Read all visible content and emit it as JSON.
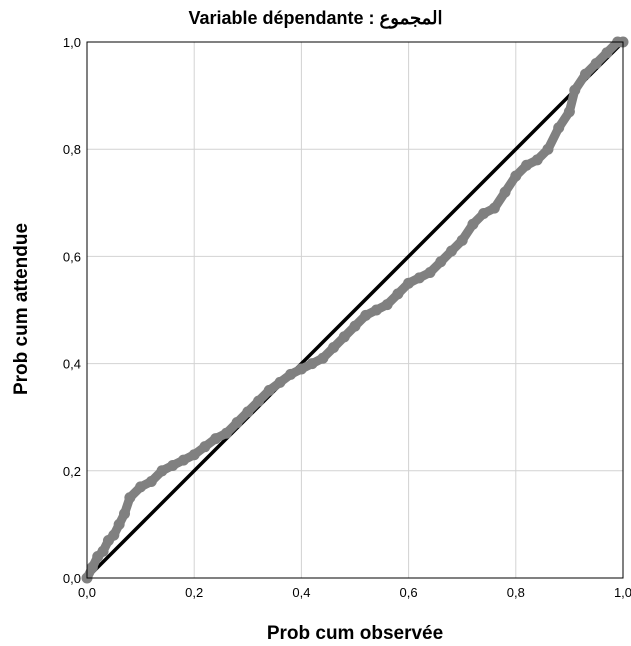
{
  "chart_data": {
    "type": "line",
    "title": "Variable dépendante : المجموع",
    "xlabel": "Prob cum observée",
    "ylabel": "Prob cum attendue",
    "xlim": [
      0,
      1
    ],
    "ylim": [
      0,
      1
    ],
    "x_ticks": [
      "0,0",
      "0,2",
      "0,4",
      "0,6",
      "0,8",
      "1,0"
    ],
    "y_ticks": [
      "0,0",
      "0,2",
      "0,4",
      "0,6",
      "0,8",
      "1,0"
    ],
    "grid": true,
    "legend": "none",
    "series": [
      {
        "kind": "points",
        "color": "#808080",
        "points": [
          [
            0.0,
            0.0
          ],
          [
            0.01,
            0.02
          ],
          [
            0.02,
            0.04
          ],
          [
            0.03,
            0.05
          ],
          [
            0.04,
            0.07
          ],
          [
            0.05,
            0.08
          ],
          [
            0.06,
            0.1
          ],
          [
            0.07,
            0.12
          ],
          [
            0.08,
            0.15
          ],
          [
            0.1,
            0.17
          ],
          [
            0.12,
            0.18
          ],
          [
            0.14,
            0.2
          ],
          [
            0.16,
            0.21
          ],
          [
            0.18,
            0.22
          ],
          [
            0.2,
            0.23
          ],
          [
            0.22,
            0.245
          ],
          [
            0.24,
            0.26
          ],
          [
            0.26,
            0.27
          ],
          [
            0.28,
            0.29
          ],
          [
            0.3,
            0.31
          ],
          [
            0.32,
            0.33
          ],
          [
            0.34,
            0.35
          ],
          [
            0.36,
            0.365
          ],
          [
            0.38,
            0.38
          ],
          [
            0.4,
            0.39
          ],
          [
            0.42,
            0.4
          ],
          [
            0.44,
            0.41
          ],
          [
            0.46,
            0.43
          ],
          [
            0.48,
            0.45
          ],
          [
            0.5,
            0.47
          ],
          [
            0.52,
            0.49
          ],
          [
            0.54,
            0.5
          ],
          [
            0.56,
            0.51
          ],
          [
            0.58,
            0.53
          ],
          [
            0.6,
            0.55
          ],
          [
            0.62,
            0.56
          ],
          [
            0.64,
            0.57
          ],
          [
            0.66,
            0.59
          ],
          [
            0.68,
            0.61
          ],
          [
            0.7,
            0.63
          ],
          [
            0.72,
            0.66
          ],
          [
            0.74,
            0.68
          ],
          [
            0.76,
            0.69
          ],
          [
            0.78,
            0.72
          ],
          [
            0.8,
            0.75
          ],
          [
            0.82,
            0.77
          ],
          [
            0.84,
            0.78
          ],
          [
            0.86,
            0.8
          ],
          [
            0.88,
            0.84
          ],
          [
            0.9,
            0.87
          ],
          [
            0.91,
            0.91
          ],
          [
            0.93,
            0.94
          ],
          [
            0.95,
            0.96
          ],
          [
            0.97,
            0.98
          ],
          [
            0.99,
            1.0
          ],
          [
            1.0,
            1.0
          ]
        ]
      },
      {
        "kind": "reference-line",
        "color": "#000000",
        "points": [
          [
            0,
            0
          ],
          [
            1,
            1
          ]
        ]
      }
    ]
  }
}
